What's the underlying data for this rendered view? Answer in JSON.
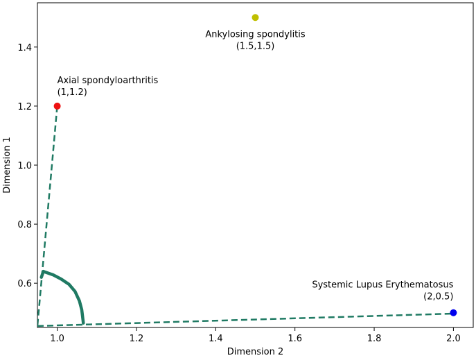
{
  "chart_data": {
    "type": "scatter",
    "title": "",
    "xlabel": "Dimension 2",
    "ylabel": "Dimension 1",
    "xlim": [
      0.95,
      2.05
    ],
    "ylim": [
      0.45,
      1.55
    ],
    "xticks": [
      "1.0",
      "1.2",
      "1.4",
      "1.6",
      "1.8",
      "2.0"
    ],
    "yticks": [
      "0.6",
      "0.8",
      "1.0",
      "1.2",
      "1.4"
    ],
    "grid": false,
    "points": [
      {
        "label": "Axial spondyloarthritis",
        "coord_label": "(1,1.2)",
        "x": 1.0,
        "y": 1.2,
        "color": "#ee1111",
        "label_side": "right"
      },
      {
        "label": "Ankylosing spondylitis",
        "coord_label": "(1.5,1.5)",
        "x": 1.5,
        "y": 1.5,
        "color": "#bfbf00",
        "label_side": "center"
      },
      {
        "label": "Systemic Lupus Erythematosus",
        "coord_label": "(2,0.5)",
        "x": 2.0,
        "y": 0.5,
        "color": "#0000ee",
        "label_side": "left"
      }
    ],
    "line_color": "#1f7a63",
    "dashed_lines": [
      [
        [
          1.0,
          1.2
        ],
        [
          0.95,
          0.455
        ]
      ],
      [
        [
          0.95,
          0.455
        ],
        [
          2.0,
          0.497
        ]
      ]
    ],
    "arc": {
      "points": [
        [
          0.965,
          0.64
        ],
        [
          0.99,
          0.628
        ],
        [
          1.01,
          0.614
        ],
        [
          1.03,
          0.596
        ],
        [
          1.045,
          0.572
        ],
        [
          1.056,
          0.54
        ],
        [
          1.062,
          0.51
        ],
        [
          1.065,
          0.475
        ],
        [
          1.066,
          0.465
        ]
      ],
      "corner_from": [
        0.965,
        0.64
      ],
      "corner_to": [
        0.96,
        0.62
      ]
    }
  }
}
